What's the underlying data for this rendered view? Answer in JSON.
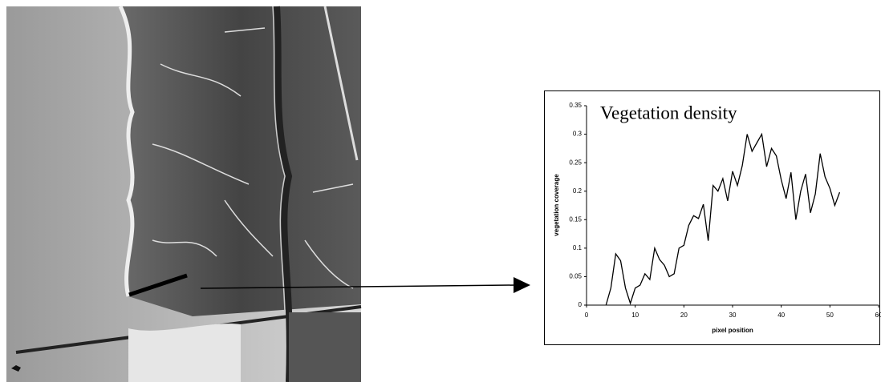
{
  "chart_data": {
    "type": "line",
    "annotation": "Vegetation density",
    "x_label": "pixel position",
    "y_label": "vegetation coverage",
    "color": "#000000",
    "xlim": [
      0,
      60
    ],
    "xticks": [
      0,
      10,
      20,
      30,
      40,
      50,
      60
    ],
    "ylim": [
      0,
      0.35
    ],
    "yticks": [
      0,
      0.05,
      0.1,
      0.15,
      0.2,
      0.25,
      0.3,
      0.35
    ],
    "x": [
      4,
      5,
      6,
      7,
      8,
      9,
      10,
      11,
      12,
      13,
      14,
      15,
      16,
      17,
      18,
      19,
      20,
      21,
      22,
      23,
      24,
      25,
      26,
      27,
      28,
      29,
      30,
      31,
      32,
      33,
      34,
      35,
      36,
      37,
      38,
      39,
      40,
      41,
      42,
      43,
      44,
      45,
      46,
      47,
      48,
      49,
      50,
      51,
      52
    ],
    "values": [
      0,
      0.03,
      0.09,
      0.078,
      0.03,
      0.003,
      0.03,
      0.035,
      0.055,
      0.045,
      0.1,
      0.08,
      0.07,
      0.05,
      0.055,
      0.1,
      0.105,
      0.14,
      0.157,
      0.152,
      0.177,
      0.113,
      0.21,
      0.2,
      0.222,
      0.183,
      0.235,
      0.21,
      0.245,
      0.3,
      0.27,
      0.285,
      0.3,
      0.243,
      0.275,
      0.262,
      0.22,
      0.187,
      0.233,
      0.15,
      0.2,
      0.23,
      0.162,
      0.195,
      0.266,
      0.225,
      0.205,
      0.175,
      0.198
    ]
  }
}
